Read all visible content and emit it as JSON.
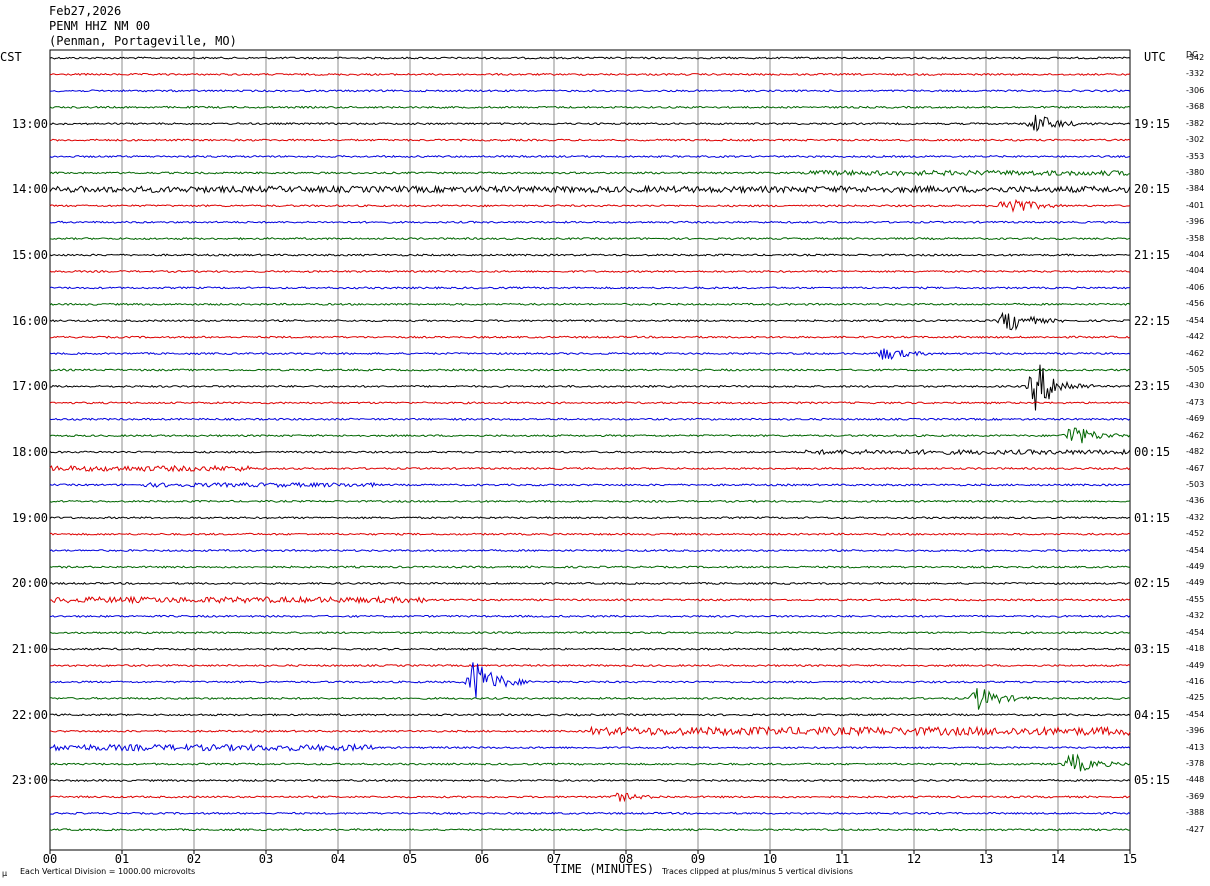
{
  "header": {
    "date": "Feb27,2026",
    "station": "PENM HHZ NM 00",
    "location": "(Penman, Portageville, MO)"
  },
  "left_axis_label": "CST",
  "right_axis_label": "UTC",
  "dc_label": "DC",
  "footer": {
    "scale": "Each Vertical Division = 1000.00 microvolts",
    "clip": "Traces clipped at plus/minus 5 vertical divisions",
    "corner_mark": "µ"
  },
  "colors": {
    "trace": [
      "#000000",
      "#dd0000",
      "#0000dd",
      "#006600"
    ],
    "grid": "#8c8c8c"
  },
  "chart_data": {
    "type": "line",
    "title": "PENM HHZ NM 00 (Penman, Portageville, MO) Feb27,2026",
    "xlabel": "TIME (MINUTES)",
    "ylabel": "",
    "xlim": [
      0,
      15
    ],
    "x_ticks": [
      "00",
      "01",
      "02",
      "03",
      "04",
      "05",
      "06",
      "07",
      "08",
      "09",
      "10",
      "11",
      "12",
      "13",
      "14",
      "15"
    ],
    "row_minutes": 15,
    "cst_hour_labels": [
      "13:00",
      "14:00",
      "15:00",
      "16:00",
      "17:00",
      "18:00",
      "19:00",
      "20:00",
      "21:00",
      "22:00",
      "23:00"
    ],
    "utc_hour_labels": [
      "19:15",
      "20:15",
      "21:15",
      "22:15",
      "23:15",
      "00:15",
      "01:15",
      "02:15",
      "03:15",
      "04:15",
      "05:15"
    ],
    "dc_offsets": [
      -342,
      -332,
      -306,
      -368,
      -382,
      -302,
      -353,
      -380,
      -384,
      -401,
      -396,
      -358,
      -404,
      -404,
      -406,
      -456,
      -454,
      -442,
      -462,
      -505,
      -430,
      -473,
      -469,
      -462,
      -482,
      -467,
      -503,
      -436,
      -432,
      -452,
      -454,
      -449,
      -449,
      -455,
      -432,
      -454,
      -418,
      -449,
      -416,
      -425,
      -454,
      -396,
      -413,
      -378,
      -448,
      -369,
      -388,
      -427
    ],
    "amplitude_scale": "Each Vertical Division = 1000.00 microvolts",
    "clip": "Traces clipped at plus/minus 5 vertical divisions",
    "events": [
      {
        "row": 4,
        "minute": 13.7,
        "strength": 0.5
      },
      {
        "row": 9,
        "minute": 13.3,
        "strength": 0.6
      },
      {
        "row": 16,
        "minute": 13.3,
        "strength": 0.6
      },
      {
        "row": 18,
        "minute": 11.6,
        "strength": 0.35
      },
      {
        "row": 20,
        "minute": 13.7,
        "strength": 1.3
      },
      {
        "row": 23,
        "minute": 14.2,
        "strength": 0.6
      },
      {
        "row": 38,
        "minute": 5.9,
        "strength": 1.2
      },
      {
        "row": 39,
        "minute": 12.9,
        "strength": 0.6
      },
      {
        "row": 43,
        "minute": 14.2,
        "strength": 0.55
      },
      {
        "row": 45,
        "minute": 7.9,
        "strength": 0.2
      }
    ],
    "noisy_segments": [
      {
        "row": 8,
        "from": 0,
        "to": 15,
        "level": 0.55
      },
      {
        "row": 7,
        "from": 10.5,
        "to": 15,
        "level": 0.4
      },
      {
        "row": 24,
        "from": 10.5,
        "to": 15,
        "level": 0.35
      },
      {
        "row": 25,
        "from": 0,
        "to": 2.8,
        "level": 0.45
      },
      {
        "row": 26,
        "from": 1.3,
        "to": 4.5,
        "level": 0.3
      },
      {
        "row": 33,
        "from": 0,
        "to": 5.3,
        "level": 0.5
      },
      {
        "row": 41,
        "from": 7.5,
        "to": 15,
        "level": 0.8
      },
      {
        "row": 42,
        "from": 0,
        "to": 4.5,
        "level": 0.55
      }
    ]
  }
}
